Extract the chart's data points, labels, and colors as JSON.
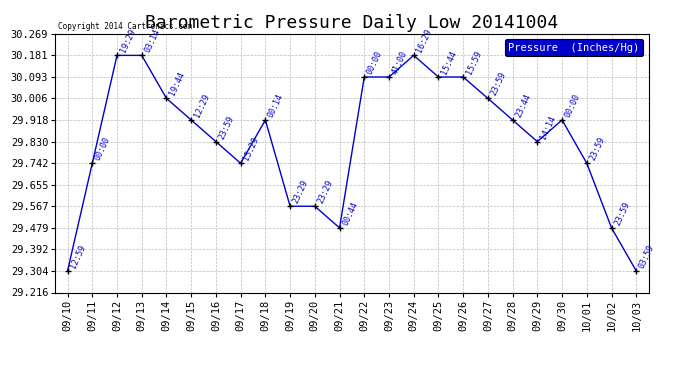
{
  "title": "Barometric Pressure Daily Low 20141004",
  "copyright": "Copyright 2014 Cartronics.com",
  "legend_label": "Pressure  (Inches/Hg)",
  "x_labels": [
    "09/10",
    "09/11",
    "09/12",
    "09/13",
    "09/14",
    "09/15",
    "09/16",
    "09/17",
    "09/18",
    "09/19",
    "09/20",
    "09/21",
    "09/22",
    "09/23",
    "09/24",
    "09/25",
    "09/26",
    "09/27",
    "09/28",
    "09/29",
    "09/30",
    "10/01",
    "10/02",
    "10/03"
  ],
  "y_values": [
    29.304,
    29.742,
    30.181,
    30.181,
    30.006,
    29.918,
    29.83,
    29.742,
    29.918,
    29.567,
    29.567,
    29.479,
    30.093,
    30.093,
    30.181,
    30.093,
    30.093,
    30.006,
    29.918,
    29.83,
    29.918,
    29.742,
    29.479,
    29.304
  ],
  "point_labels": [
    "12:59",
    "00:00",
    "19:29",
    "03:14",
    "19:44",
    "12:29",
    "23:59",
    "15:29",
    "00:14",
    "23:29",
    "23:29",
    "00:44",
    "00:00",
    "41:00",
    "16:29",
    "15:44",
    "15:59",
    "23:59",
    "23:44",
    "14:14",
    "00:00",
    "23:59",
    "23:59",
    "03:59"
  ],
  "ylim": [
    29.216,
    30.269
  ],
  "yticks": [
    29.216,
    29.304,
    29.392,
    29.479,
    29.567,
    29.655,
    29.742,
    29.83,
    29.918,
    30.006,
    30.093,
    30.181,
    30.269
  ],
  "line_color": "#0000cc",
  "marker_color": "#000000",
  "label_color": "#0000cc",
  "bg_color": "#ffffff",
  "grid_color": "#bbbbbb",
  "title_fontsize": 13,
  "tick_fontsize": 7.5,
  "legend_bg": "#0000cc",
  "legend_fg": "#ffffff"
}
